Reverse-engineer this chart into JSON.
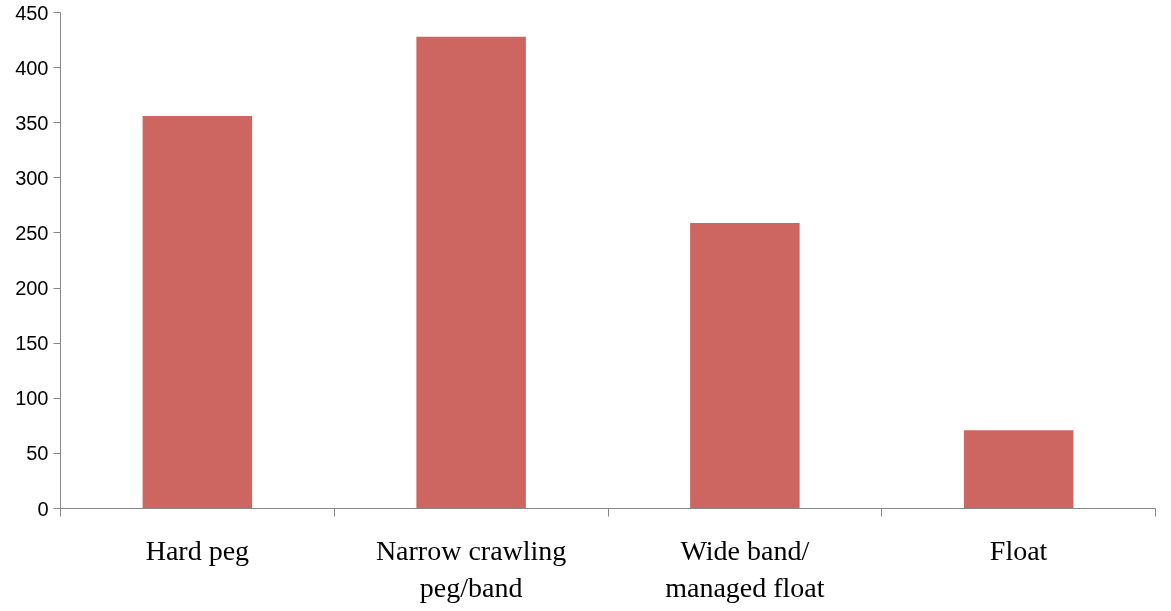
{
  "chart_data": {
    "type": "bar",
    "categories": [
      "Hard peg",
      "Narrow crawling peg/band",
      "Wide band/ managed float",
      "Float"
    ],
    "values": [
      356,
      428,
      259,
      71
    ],
    "color": "#cd6660",
    "ylim": [
      0,
      450
    ],
    "yticks": [
      0,
      50,
      100,
      150,
      200,
      250,
      300,
      350,
      400,
      450
    ],
    "grid": false
  }
}
